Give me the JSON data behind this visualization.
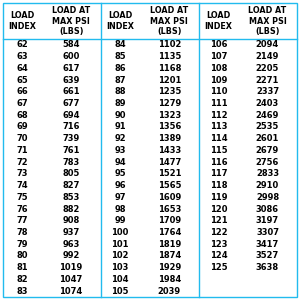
{
  "col1_data": [
    [
      62,
      584
    ],
    [
      63,
      600
    ],
    [
      64,
      617
    ],
    [
      65,
      639
    ],
    [
      66,
      661
    ],
    [
      67,
      677
    ],
    [
      68,
      694
    ],
    [
      69,
      716
    ],
    [
      70,
      739
    ],
    [
      71,
      761
    ],
    [
      72,
      783
    ],
    [
      73,
      805
    ],
    [
      74,
      827
    ],
    [
      75,
      853
    ],
    [
      76,
      882
    ],
    [
      77,
      908
    ],
    [
      78,
      937
    ],
    [
      79,
      963
    ],
    [
      80,
      992
    ],
    [
      81,
      1019
    ],
    [
      82,
      1047
    ],
    [
      83,
      1074
    ]
  ],
  "col2_data": [
    [
      84,
      1102
    ],
    [
      85,
      1135
    ],
    [
      86,
      1168
    ],
    [
      87,
      1201
    ],
    [
      88,
      1235
    ],
    [
      89,
      1279
    ],
    [
      90,
      1323
    ],
    [
      91,
      1356
    ],
    [
      92,
      1389
    ],
    [
      93,
      1433
    ],
    [
      94,
      1477
    ],
    [
      95,
      1521
    ],
    [
      96,
      1565
    ],
    [
      97,
      1609
    ],
    [
      98,
      1653
    ],
    [
      99,
      1709
    ],
    [
      100,
      1764
    ],
    [
      101,
      1819
    ],
    [
      102,
      1874
    ],
    [
      103,
      1929
    ],
    [
      104,
      1984
    ],
    [
      105,
      2039
    ]
  ],
  "col3_data": [
    [
      106,
      2094
    ],
    [
      107,
      2149
    ],
    [
      108,
      2205
    ],
    [
      109,
      2271
    ],
    [
      110,
      2337
    ],
    [
      111,
      2403
    ],
    [
      112,
      2469
    ],
    [
      113,
      2535
    ],
    [
      114,
      2601
    ],
    [
      115,
      2679
    ],
    [
      116,
      2756
    ],
    [
      117,
      2833
    ],
    [
      118,
      2910
    ],
    [
      119,
      2998
    ],
    [
      120,
      3086
    ],
    [
      121,
      3197
    ],
    [
      122,
      3307
    ],
    [
      123,
      3417
    ],
    [
      124,
      3527
    ],
    [
      125,
      3638
    ]
  ],
  "header_text_color": "#000000",
  "data_text_color": "#000000",
  "bg_color": "#ffffff",
  "border_color": "#22bbee",
  "header_fontsize": 5.8,
  "data_fontsize": 6.0,
  "n_rows": 22
}
